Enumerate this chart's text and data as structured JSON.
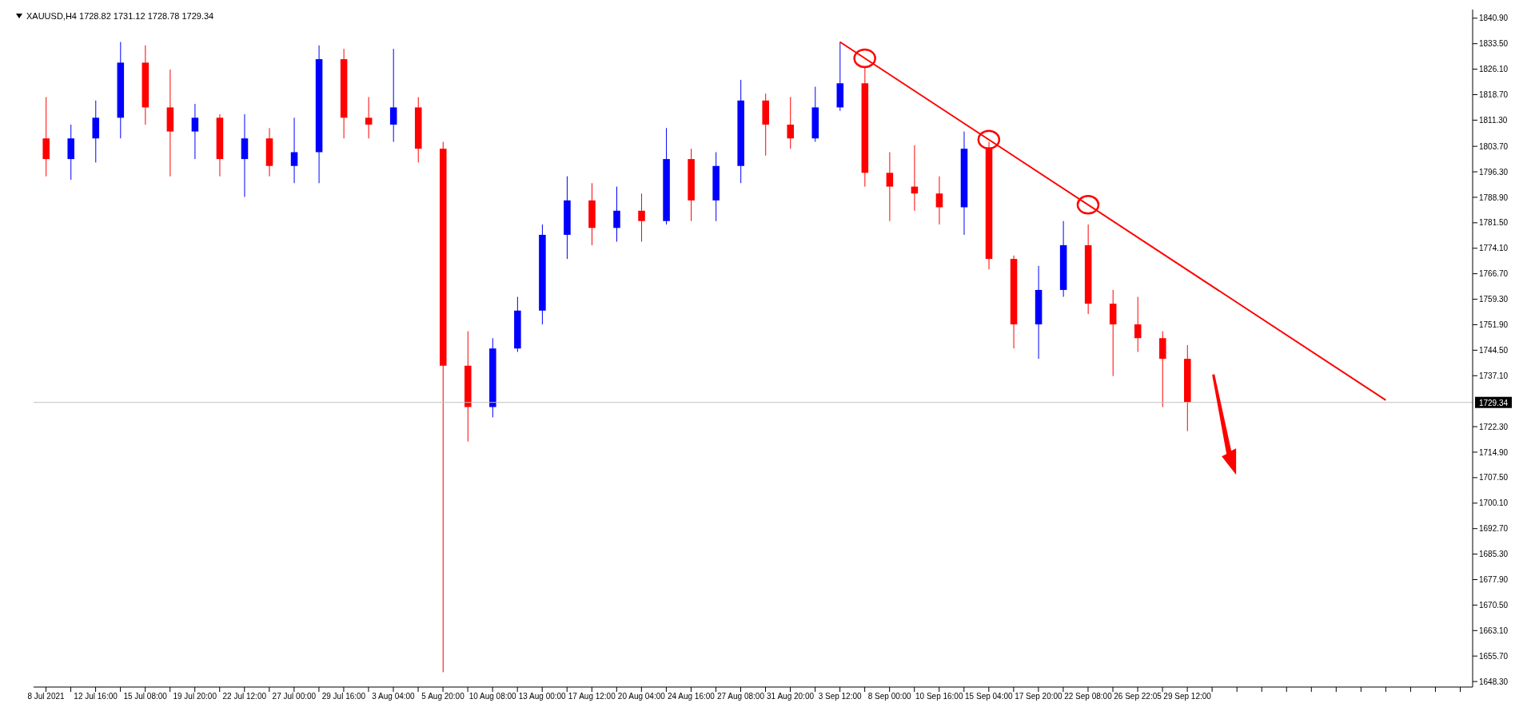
{
  "chart_data": {
    "type": "candlestick",
    "title": "XAUUSD,H4  1728.82 1731.12 1728.78 1729.34",
    "categories": [
      "8 Jul 2021",
      null,
      "12 Jul 16:00",
      null,
      "15 Jul 08:00",
      null,
      "19 Jul 20:00",
      null,
      "22 Jul 12:00",
      null,
      "27 Jul 00:00",
      null,
      "29 Jul 16:00",
      null,
      "3 Aug 04:00",
      null,
      "5 Aug 20:00",
      null,
      "10 Aug 08:00",
      null,
      "13 Aug 00:00",
      null,
      "17 Aug 12:00",
      null,
      "20 Aug 04:00",
      null,
      "24 Aug 16:00",
      null,
      "27 Aug 08:00",
      null,
      "31 Aug 20:00",
      null,
      "3 Sep 12:00",
      null,
      "8 Sep 00:00",
      null,
      "10 Sep 16:00",
      null,
      "15 Sep 04:00",
      null,
      "17 Sep 20:00",
      null,
      "22 Sep 08:00",
      null,
      "26 Sep 22:05",
      null,
      "29 Sep 12:00",
      null,
      null,
      null,
      null,
      null,
      null,
      null,
      null,
      null,
      null,
      null
    ],
    "ohlc": [
      [
        1806,
        1818,
        1795,
        1800
      ],
      [
        1800,
        1810,
        1794,
        1806
      ],
      [
        1806,
        1817,
        1799,
        1812
      ],
      [
        1812,
        1834,
        1806,
        1828
      ],
      [
        1828,
        1833,
        1810,
        1815
      ],
      [
        1815,
        1826,
        1795,
        1808
      ],
      [
        1808,
        1816,
        1800,
        1812
      ],
      [
        1812,
        1813,
        1795,
        1800
      ],
      [
        1800,
        1813,
        1789,
        1806
      ],
      [
        1806,
        1809,
        1795,
        1798
      ],
      [
        1798,
        1812,
        1793,
        1802
      ],
      [
        1802,
        1833,
        1793,
        1829
      ],
      [
        1829,
        1832,
        1806,
        1812
      ],
      [
        1812,
        1818,
        1806,
        1810
      ],
      [
        1810,
        1832,
        1805,
        1815
      ],
      [
        1815,
        1818,
        1799,
        1803
      ],
      [
        1803,
        1805,
        1651,
        1740
      ],
      [
        1740,
        1750,
        1718,
        1728
      ],
      [
        1728,
        1748,
        1725,
        1745
      ],
      [
        1745,
        1760,
        1744,
        1756
      ],
      [
        1756,
        1781,
        1752,
        1778
      ],
      [
        1778,
        1795,
        1771,
        1788
      ],
      [
        1788,
        1793,
        1775,
        1780
      ],
      [
        1780,
        1792,
        1776,
        1785
      ],
      [
        1785,
        1790,
        1776,
        1782
      ],
      [
        1782,
        1809,
        1781,
        1800
      ],
      [
        1800,
        1803,
        1782,
        1788
      ],
      [
        1788,
        1802,
        1782,
        1798
      ],
      [
        1798,
        1823,
        1793,
        1817
      ],
      [
        1817,
        1819,
        1801,
        1810
      ],
      [
        1810,
        1818,
        1803,
        1806
      ],
      [
        1806,
        1821,
        1805,
        1815
      ],
      [
        1815,
        1834,
        1814,
        1822
      ],
      [
        1822,
        1827,
        1792,
        1796
      ],
      [
        1796,
        1802,
        1782,
        1792
      ],
      [
        1792,
        1804,
        1785,
        1790
      ],
      [
        1790,
        1795,
        1781,
        1786
      ],
      [
        1786,
        1808,
        1778,
        1803
      ],
      [
        1803,
        1805,
        1768,
        1771
      ],
      [
        1771,
        1772,
        1745,
        1752
      ],
      [
        1752,
        1769,
        1742,
        1762
      ],
      [
        1762,
        1782,
        1760,
        1775
      ],
      [
        1775,
        1781,
        1755,
        1758
      ],
      [
        1758,
        1762,
        1737,
        1752
      ],
      [
        1752,
        1760,
        1744,
        1748
      ],
      [
        1748,
        1750,
        1728,
        1742
      ],
      [
        1742,
        1746,
        1721,
        1729.34
      ],
      null,
      null,
      null,
      null,
      null,
      null,
      null,
      null,
      null,
      null,
      null
    ],
    "colors": [
      "#ff0000",
      "#0000ff",
      "#0000ff",
      "#0000ff",
      "#ff0000",
      "#ff0000",
      "#0000ff",
      "#ff0000",
      "#0000ff",
      "#ff0000",
      "#0000ff",
      "#0000ff",
      "#ff0000",
      "#ff0000",
      "#0000ff",
      "#ff0000",
      "#ff0000",
      "#ff0000",
      "#0000ff",
      "#0000ff",
      "#0000ff",
      "#0000ff",
      "#ff0000",
      "#0000ff",
      "#ff0000",
      "#0000ff",
      "#ff0000",
      "#0000ff",
      "#0000ff",
      "#ff0000",
      "#ff0000",
      "#0000ff",
      "#0000ff",
      "#ff0000",
      "#ff0000",
      "#ff0000",
      "#ff0000",
      "#0000ff",
      "#ff0000",
      "#ff0000",
      "#0000ff",
      "#0000ff",
      "#ff0000",
      "#ff0000",
      "#ff0000",
      "#ff0000",
      "#ff0000",
      null,
      null,
      null,
      null,
      null,
      null,
      null,
      null,
      null,
      null,
      null
    ],
    "series": [
      {
        "type": "line",
        "color": "#ff0000",
        "values": [
          null,
          null,
          null,
          null,
          null,
          null,
          null,
          null,
          null,
          null,
          null,
          null,
          null,
          null,
          null,
          null,
          null,
          null,
          null,
          null,
          null,
          null,
          null,
          null,
          null,
          null,
          null,
          null,
          null,
          null,
          null,
          null,
          1834,
          null,
          null,
          null,
          null,
          null,
          null,
          null,
          null,
          null,
          null,
          null,
          null,
          null,
          null,
          null,
          null,
          null,
          null,
          null,
          null,
          null,
          1730,
          null,
          null,
          null
        ]
      }
    ],
    "ylim": [
      1646.7,
      1843.4
    ],
    "yticks": [
      {
        "value": 1840.9,
        "label": "1840.90"
      },
      {
        "value": 1833.5,
        "label": "1833.50"
      },
      {
        "value": 1826.1,
        "label": "1826.10"
      },
      {
        "value": 1818.7,
        "label": "1818.70"
      },
      {
        "value": 1811.3,
        "label": "1811.30"
      },
      {
        "value": 1803.7,
        "label": "1803.70"
      },
      {
        "value": 1796.3,
        "label": "1796.30"
      },
      {
        "value": 1788.9,
        "label": "1788.90"
      },
      {
        "value": 1781.5,
        "label": "1781.50"
      },
      {
        "value": 1774.1,
        "label": "1774.10"
      },
      {
        "value": 1766.7,
        "label": "1766.70"
      },
      {
        "value": 1759.3,
        "label": "1759.30"
      },
      {
        "value": 1751.9,
        "label": "1751.90"
      },
      {
        "value": 1744.5,
        "label": "1744.50"
      },
      {
        "value": 1737.1,
        "label": "1737.10"
      },
      {
        "value": 1722.3,
        "label": "1722.30"
      },
      {
        "value": 1714.9,
        "label": "1714.90"
      },
      {
        "value": 1707.5,
        "label": "1707.50"
      },
      {
        "value": 1700.1,
        "label": "1700.10"
      },
      {
        "value": 1692.7,
        "label": "1692.70"
      },
      {
        "value": 1685.3,
        "label": "1685.30"
      },
      {
        "value": 1677.9,
        "label": "1677.90"
      },
      {
        "value": 1670.5,
        "label": "1670.50"
      },
      {
        "value": 1663.1,
        "label": "1663.10"
      },
      {
        "value": 1655.7,
        "label": "1655.70"
      },
      {
        "value": 1648.3,
        "label": "1648.30"
      }
    ],
    "ref_lines": [
      {
        "axis": "y",
        "value": 1729.34,
        "label": "1729.34",
        "color": "#c0c0c0"
      }
    ]
  }
}
